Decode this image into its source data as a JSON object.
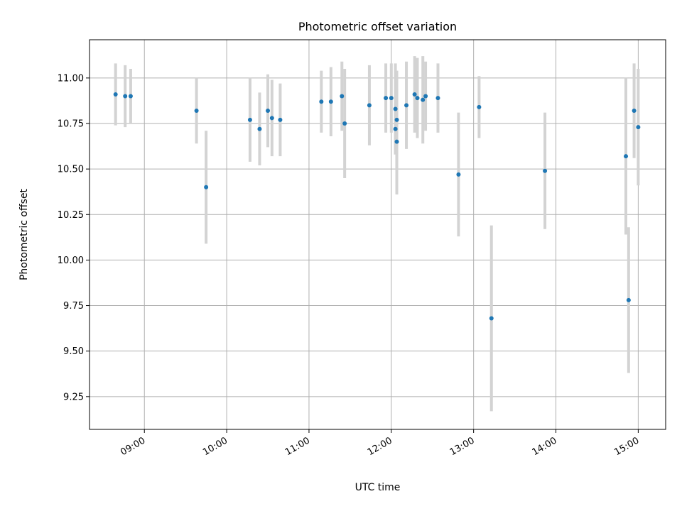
{
  "chart_data": {
    "type": "scatter",
    "title": "Photometric offset variation",
    "xlabel": "UTC time",
    "ylabel": "Photometric offset",
    "x_axis": {
      "kind": "time",
      "range": [
        "08:20",
        "15:20"
      ],
      "ticks": [
        "09:00",
        "10:00",
        "11:00",
        "12:00",
        "13:00",
        "14:00",
        "15:00"
      ]
    },
    "y_axis": {
      "range": [
        9.07,
        11.21
      ],
      "ticks": [
        "9.25",
        "9.50",
        "9.75",
        "10.00",
        "10.25",
        "10.50",
        "10.75",
        "11.00"
      ]
    },
    "grid": true,
    "colors": {
      "point": "#1f77b4",
      "error_bar": "#d3d3d3"
    },
    "series": [
      {
        "points": [
          {
            "x": "08:39",
            "y": 10.91,
            "err": 0.17
          },
          {
            "x": "08:46",
            "y": 10.9,
            "err": 0.17
          },
          {
            "x": "08:50",
            "y": 10.9,
            "err": 0.15
          },
          {
            "x": "09:38",
            "y": 10.82,
            "err": 0.18
          },
          {
            "x": "09:45",
            "y": 10.4,
            "err": 0.31
          },
          {
            "x": "10:17",
            "y": 10.77,
            "err": 0.23
          },
          {
            "x": "10:24",
            "y": 10.72,
            "err": 0.2
          },
          {
            "x": "10:30",
            "y": 10.82,
            "err": 0.2
          },
          {
            "x": "10:33",
            "y": 10.78,
            "err": 0.21
          },
          {
            "x": "10:39",
            "y": 10.77,
            "err": 0.2
          },
          {
            "x": "11:09",
            "y": 10.87,
            "err": 0.17
          },
          {
            "x": "11:16",
            "y": 10.87,
            "err": 0.19
          },
          {
            "x": "11:24",
            "y": 10.9,
            "err": 0.19
          },
          {
            "x": "11:26",
            "y": 10.75,
            "err": 0.3
          },
          {
            "x": "11:44",
            "y": 10.85,
            "err": 0.22
          },
          {
            "x": "11:56",
            "y": 10.89,
            "err": 0.19
          },
          {
            "x": "12:00",
            "y": 10.89,
            "err": 0.19
          },
          {
            "x": "12:03",
            "y": 10.83,
            "err": 0.25
          },
          {
            "x": "12:03",
            "y": 10.72,
            "err": 0.14
          },
          {
            "x": "12:04",
            "y": 10.77,
            "err": 0.27
          },
          {
            "x": "12:04",
            "y": 10.65,
            "err": 0.29
          },
          {
            "x": "12:11",
            "y": 10.85,
            "err": 0.24
          },
          {
            "x": "12:17",
            "y": 10.91,
            "err": 0.21
          },
          {
            "x": "12:19",
            "y": 10.89,
            "err": 0.22
          },
          {
            "x": "12:23",
            "y": 10.88,
            "err": 0.24
          },
          {
            "x": "12:25",
            "y": 10.9,
            "err": 0.19
          },
          {
            "x": "12:34",
            "y": 10.89,
            "err": 0.19
          },
          {
            "x": "12:49",
            "y": 10.47,
            "err": 0.34
          },
          {
            "x": "13:04",
            "y": 10.84,
            "err": 0.17
          },
          {
            "x": "13:13",
            "y": 9.68,
            "err": 0.51
          },
          {
            "x": "13:52",
            "y": 10.49,
            "err": 0.32
          },
          {
            "x": "14:51",
            "y": 10.57,
            "err": 0.43
          },
          {
            "x": "14:53",
            "y": 9.78,
            "err": 0.4
          },
          {
            "x": "14:57",
            "y": 10.82,
            "err": 0.26
          },
          {
            "x": "15:00",
            "y": 10.73,
            "err": 0.32
          }
        ]
      }
    ]
  }
}
